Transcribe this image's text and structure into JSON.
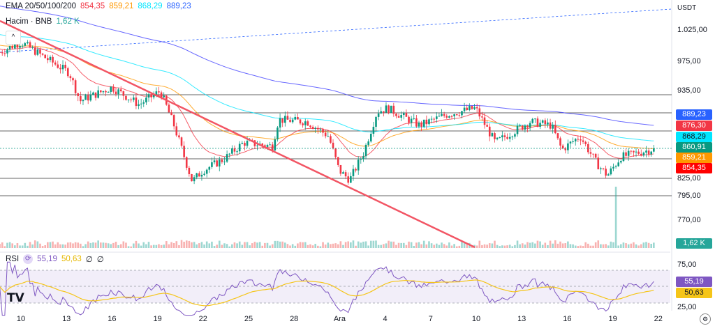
{
  "header": {
    "ema_label": "EMA 20/50/100/200",
    "ema_values": [
      "854,35",
      "859,21",
      "868,29",
      "889,23"
    ],
    "volume_label": "Hacim · BNB",
    "volume_value": "1,62 K",
    "currency": "USDT"
  },
  "colors": {
    "ema20": "#f23645",
    "ema50": "#ff9800",
    "ema100": "#00e5ff",
    "ema200": "#3f3fff",
    "up": "#089981",
    "down": "#f23645",
    "trend": "#f25564",
    "rsi": "#7e57c2",
    "rsi_ma": "#f5c518"
  },
  "price_axis": [
    "1.025,00",
    "975,00",
    "935,00",
    "825,00",
    "795,00",
    "770,00"
  ],
  "badges": [
    {
      "label": "889,23",
      "color": "#2962ff"
    },
    {
      "label": "876,30",
      "color": "#f23645"
    },
    {
      "label": "868,29",
      "color": "#00e5ff",
      "dark": true
    },
    {
      "label": "860,91",
      "color": "#089981"
    },
    {
      "label": "859,21",
      "color": "#ff9800"
    },
    {
      "label": "854,35",
      "color": "#ff0000"
    }
  ],
  "volume_badge": "1,62 K",
  "rsi": {
    "label": "RSI",
    "value": "55,19",
    "ma_value": "50,63",
    "extra1": "∅",
    "extra2": "∅",
    "axis": [
      "75,00",
      "25,00"
    ],
    "badge_value": "55,19",
    "badge_ma": "50,63"
  },
  "time_axis": [
    "10",
    "13",
    "16",
    "19",
    "22",
    "25",
    "28",
    "Ara",
    "4",
    "7",
    "10",
    "13",
    "16",
    "19",
    "22"
  ],
  "chart_data": {
    "type": "candlestick",
    "symbol": "BNB/USDT",
    "keyframes_day_price": [
      [
        8.6,
        995
      ],
      [
        10,
        1009
      ],
      [
        11.4,
        990
      ],
      [
        13.2,
        966
      ],
      [
        13.9,
        927
      ],
      [
        16,
        946
      ],
      [
        17.8,
        922
      ],
      [
        19.2,
        941
      ],
      [
        20.1,
        893
      ],
      [
        21.3,
        815
      ],
      [
        22,
        830
      ],
      [
        23.4,
        846
      ],
      [
        24.7,
        869
      ],
      [
        26.6,
        864
      ],
      [
        27,
        901
      ],
      [
        28.9,
        898
      ],
      [
        30.3,
        878
      ],
      [
        31,
        830
      ],
      [
        31.7,
        817
      ],
      [
        32.6,
        854
      ],
      [
        33.5,
        912
      ],
      [
        34.2,
        917
      ],
      [
        36.3,
        893
      ],
      [
        38.1,
        908
      ],
      [
        40,
        917
      ],
      [
        41.3,
        869
      ],
      [
        43.6,
        898
      ],
      [
        45,
        893
      ],
      [
        45.7,
        859
      ],
      [
        46.9,
        878
      ],
      [
        48,
        840
      ],
      [
        48.7,
        823
      ],
      [
        49.6,
        849
      ],
      [
        51.9,
        861
      ]
    ],
    "last_price": 860.91,
    "volume_spike_day": 49.2
  }
}
